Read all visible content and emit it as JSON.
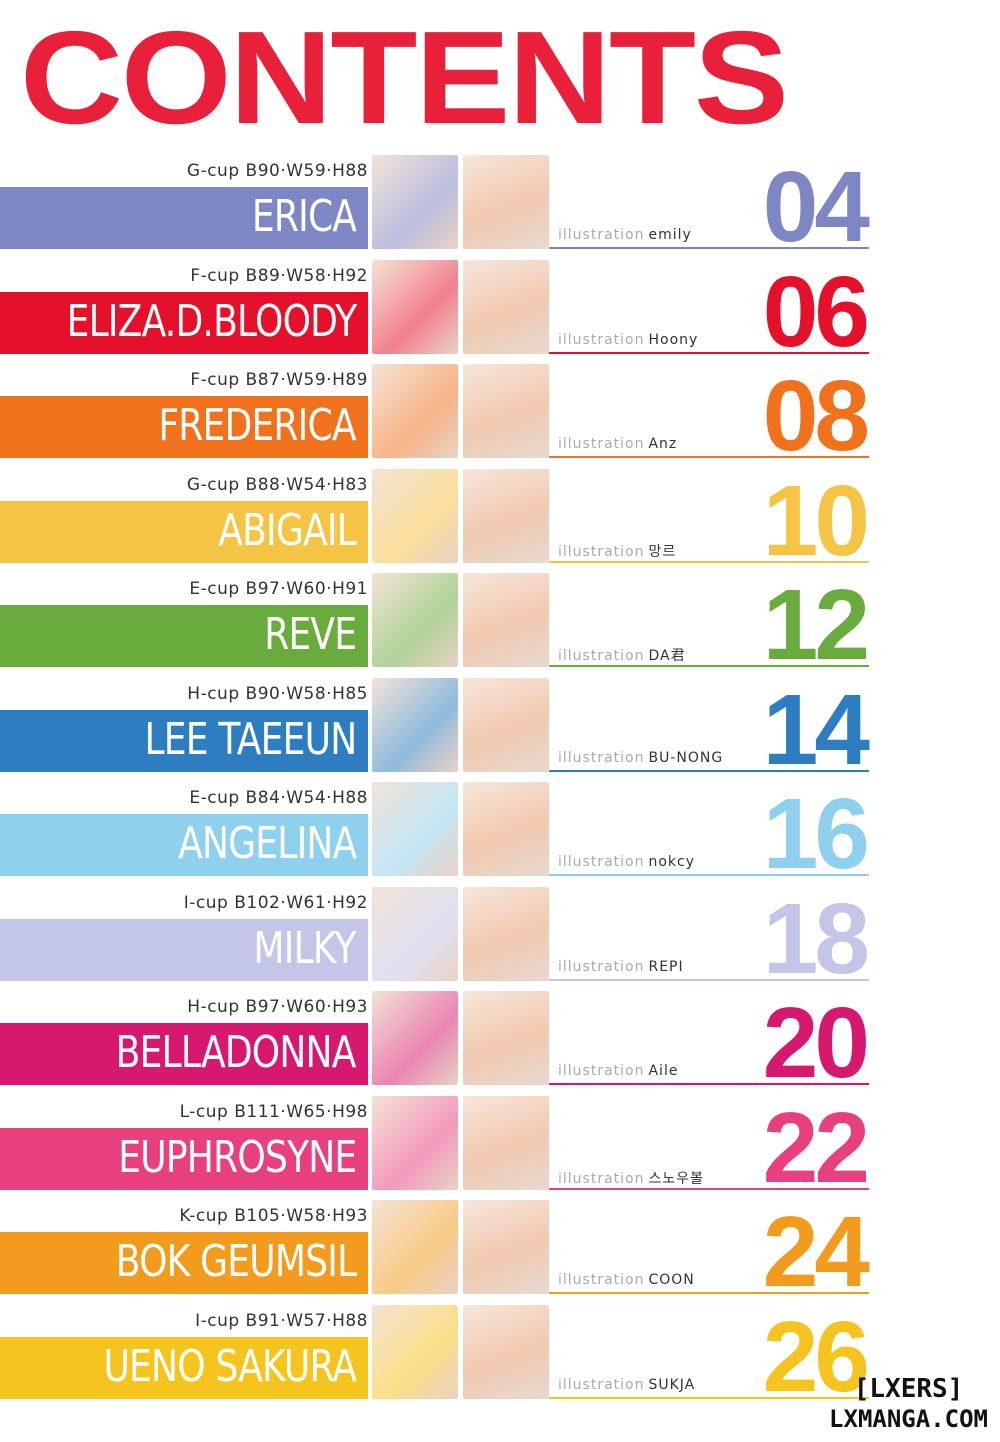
{
  "title": "CONTENTS",
  "illustration_label": "illustration",
  "entries": [
    {
      "stats": "G-cup B90·W59·H88",
      "name": "ERICA",
      "artist": "emily",
      "page": "04",
      "color": "#7f86c4",
      "num_color": "#7f86c4"
    },
    {
      "stats": "F-cup B89·W58·H92",
      "name": "ELIZA.D.BLOODY",
      "artist": "Hoony",
      "page": "06",
      "color": "#e5102a",
      "num_color": "#e5102a"
    },
    {
      "stats": "F-cup B87·W59·H89",
      "name": "FREDERICA",
      "artist": "Anz",
      "page": "08",
      "color": "#f2711c",
      "num_color": "#f2711c"
    },
    {
      "stats": "G-cup B88·W54·H83",
      "name": "ABIGAIL",
      "artist": "망르",
      "page": "10",
      "color": "#f5c445",
      "num_color": "#f5c445"
    },
    {
      "stats": "E-cup B97·W60·H91",
      "name": "REVE",
      "artist": "DA君",
      "page": "12",
      "color": "#6aab3e",
      "num_color": "#6aab3e"
    },
    {
      "stats": "H-cup B90·W58·H85",
      "name": "LEE TAEEUN",
      "artist": "BU-NONG",
      "page": "14",
      "color": "#2d7dc0",
      "num_color": "#2d7dc0"
    },
    {
      "stats": "E-cup B84·W54·H88",
      "name": "ANGELINA",
      "artist": "nokcy",
      "page": "16",
      "color": "#8fd0ee",
      "num_color": "#8fd0ee"
    },
    {
      "stats": "I-cup B102·W61·H92",
      "name": "MILKY",
      "artist": "REPI",
      "page": "18",
      "color": "#c3c6e6",
      "num_color": "#c3c6e6"
    },
    {
      "stats": "H-cup B97·W60·H93",
      "name": "BELLADONNA",
      "artist": "Aile",
      "page": "20",
      "color": "#d6196e",
      "num_color": "#d6196e"
    },
    {
      "stats": "L-cup B111·W65·H98",
      "name": "EUPHROSYNE",
      "artist": "스노우볼",
      "page": "22",
      "color": "#e8407f",
      "num_color": "#e8407f"
    },
    {
      "stats": "K-cup B105·W58·H93",
      "name": "BOK GEUMSIL",
      "artist": "COON",
      "page": "24",
      "color": "#f39b1c",
      "num_color": "#f39b1c"
    },
    {
      "stats": "I-cup B91·W57·H88",
      "name": "UENO SAKURA",
      "artist": "SUKJA",
      "page": "26",
      "color": "#f6c41e",
      "num_color": "#f6c41e"
    }
  ],
  "watermark": {
    "line1": "[LXERS]",
    "line2": "LXMANGA.COM"
  }
}
